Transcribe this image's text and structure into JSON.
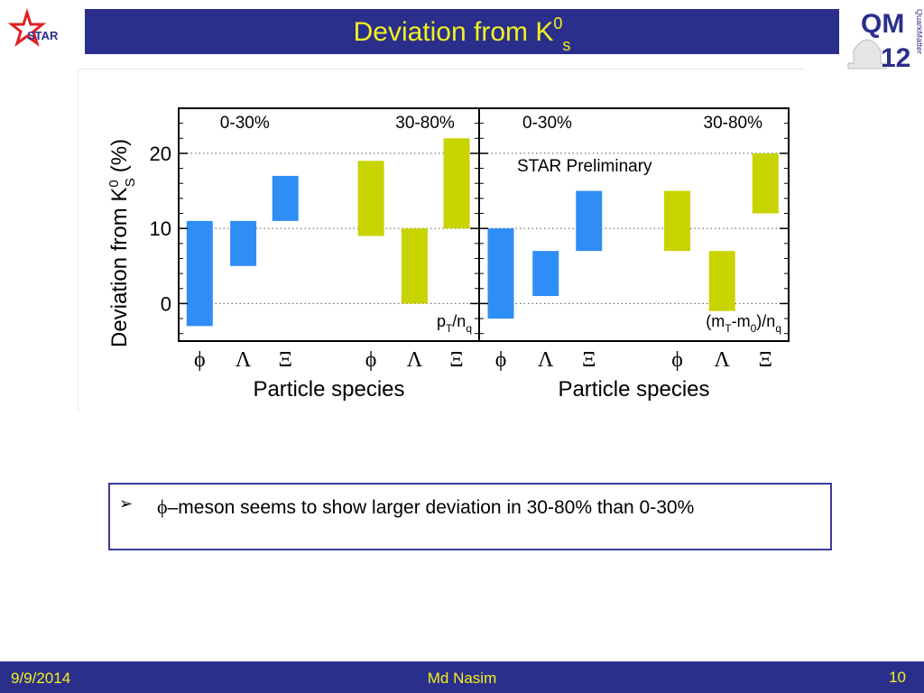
{
  "slide": {
    "title_main": "Deviation from K",
    "title_sup": "0",
    "title_sub": "s",
    "logo_star_text": "STAR",
    "logo_qm_text": "QM",
    "logo_qm_year": "12",
    "logo_qm_side": "QuarkMatter"
  },
  "bullet": {
    "symbol": "ϕ",
    "text": "–meson seems to show larger deviation in 30-80%  than 0-30%"
  },
  "footer": {
    "date": "9/9/2014",
    "author": "Md Nasim",
    "page": "10"
  },
  "colors": {
    "bar_central": "#2f8ef5",
    "bar_peripheral": "#c8d400",
    "title_bar": "#2b2f8c",
    "title_text": "#f2f21e"
  },
  "chart_data": {
    "type": "bar",
    "ylabel": "Deviation from K",
    "ylabel_sup": "0",
    "ylabel_sub": "S",
    "ylabel_unit": "(%)",
    "xlabel": "Particle species",
    "ylim": [
      -5,
      26
    ],
    "yticks": [
      0,
      10,
      20
    ],
    "grid_dotted_at": [
      0,
      10,
      20
    ],
    "annotation": "STAR Preliminary",
    "panels": [
      {
        "scaling": "pT/nq",
        "scaling_parts": [
          "p",
          "T",
          "/n",
          "q"
        ],
        "centrality_labels": [
          "0-30%",
          "30-80%"
        ],
        "categories": [
          "ϕ",
          "Λ",
          "Ξ",
          "ϕ",
          "Λ",
          "Ξ"
        ],
        "bars": [
          {
            "particle": "ϕ",
            "centrality": "0-30%",
            "low": -3,
            "high": 11
          },
          {
            "particle": "Λ",
            "centrality": "0-30%",
            "low": 5,
            "high": 11
          },
          {
            "particle": "Ξ",
            "centrality": "0-30%",
            "low": 11,
            "high": 17
          },
          {
            "particle": "ϕ",
            "centrality": "30-80%",
            "low": 9,
            "high": 19
          },
          {
            "particle": "Λ",
            "centrality": "30-80%",
            "low": 0,
            "high": 10
          },
          {
            "particle": "Ξ",
            "centrality": "30-80%",
            "low": 10,
            "high": 22
          }
        ]
      },
      {
        "scaling": "(mT-m0)/nq",
        "scaling_parts": [
          "(m",
          "T",
          "-m",
          "0",
          ")/n",
          "q"
        ],
        "centrality_labels": [
          "0-30%",
          "30-80%"
        ],
        "categories": [
          "ϕ",
          "Λ",
          "Ξ",
          "ϕ",
          "Λ",
          "Ξ"
        ],
        "bars": [
          {
            "particle": "ϕ",
            "centrality": "0-30%",
            "low": -2,
            "high": 10
          },
          {
            "particle": "Λ",
            "centrality": "0-30%",
            "low": 1,
            "high": 7
          },
          {
            "particle": "Ξ",
            "centrality": "0-30%",
            "low": 7,
            "high": 15
          },
          {
            "particle": "ϕ",
            "centrality": "30-80%",
            "low": 7,
            "high": 15
          },
          {
            "particle": "Λ",
            "centrality": "30-80%",
            "low": -1,
            "high": 7
          },
          {
            "particle": "Ξ",
            "centrality": "30-80%",
            "low": 12,
            "high": 20
          }
        ]
      }
    ]
  }
}
